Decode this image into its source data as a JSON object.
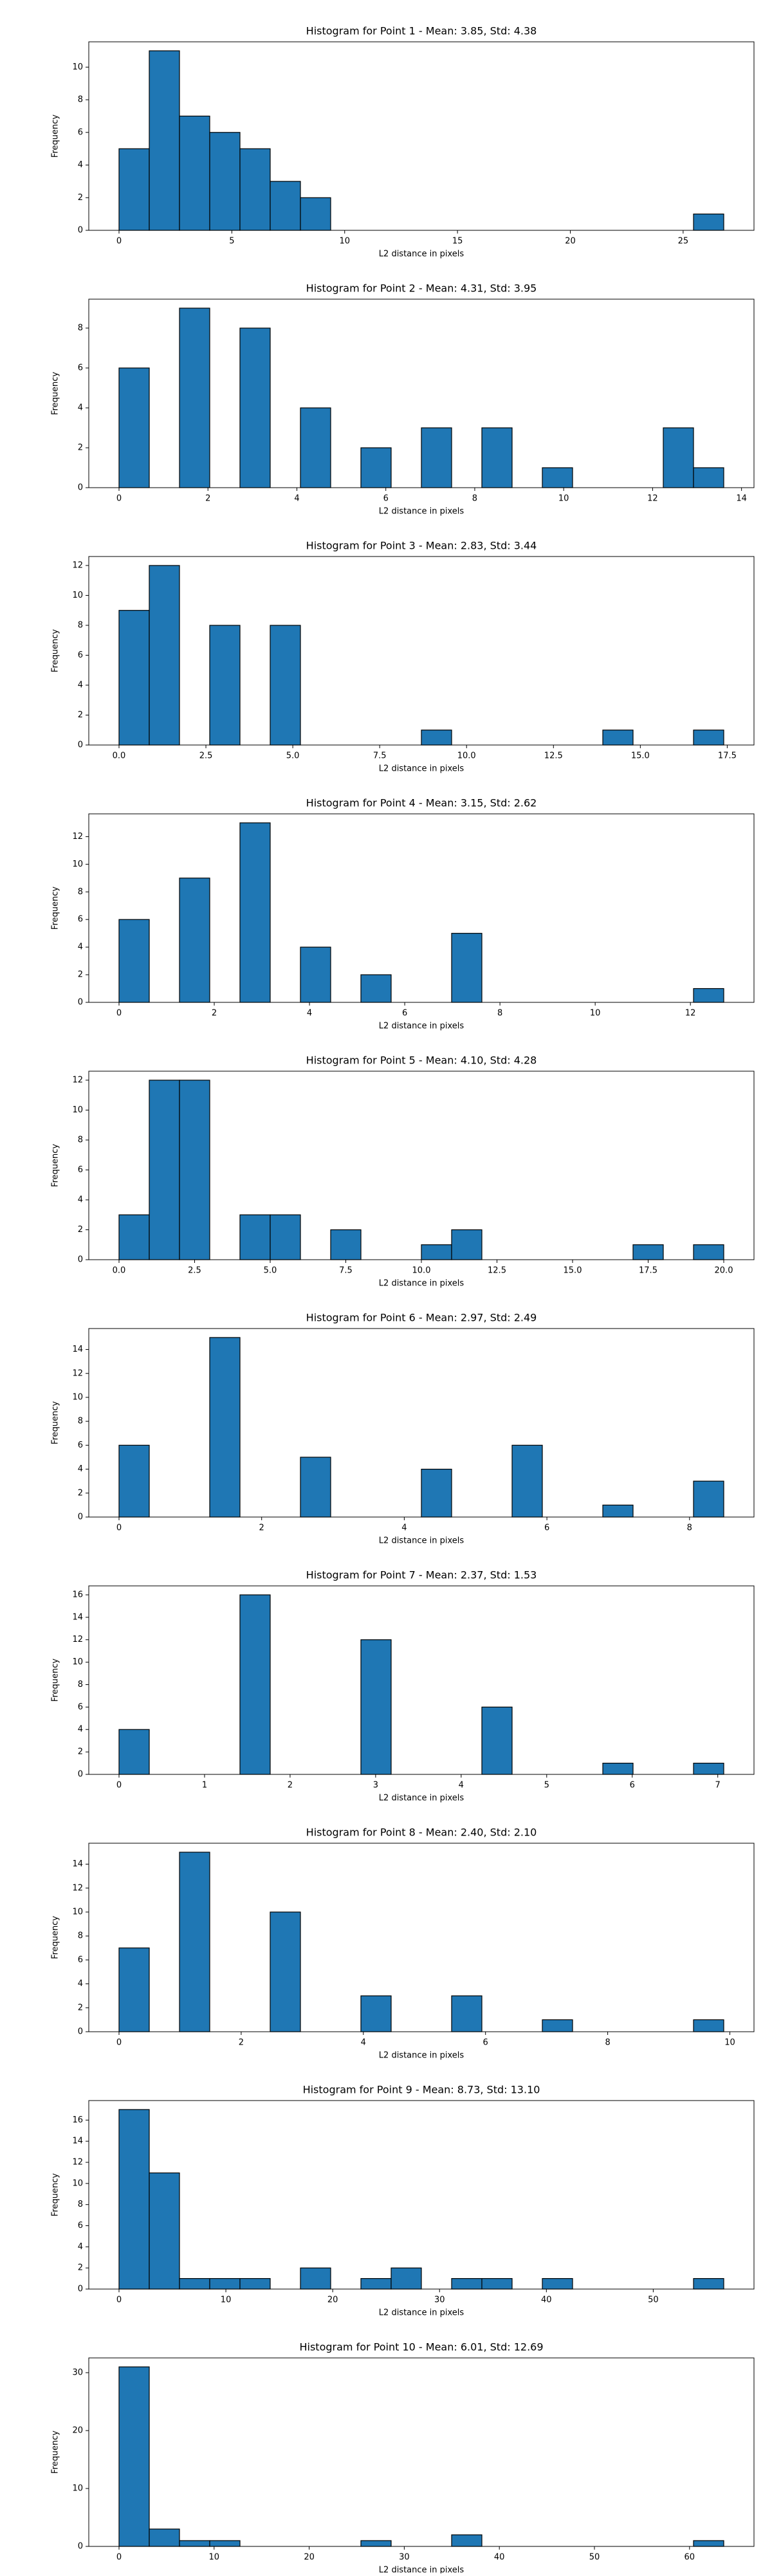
{
  "chart_data": [
    {
      "type": "histogram",
      "title": "Histogram for Point 1 - Mean: 3.85, Std: 4.38",
      "xlabel": "L2 distance in pixels",
      "ylabel": "Frequency",
      "color": "#1f77b4",
      "edgecolor": "#000000",
      "bins": [
        0,
        1.34,
        2.68,
        4.02,
        5.36,
        6.7,
        8.04,
        9.38,
        10.72,
        12.06,
        13.4,
        14.74,
        16.08,
        17.42,
        18.76,
        20.1,
        21.44,
        22.78,
        24.12,
        25.46,
        26.8
      ],
      "counts": [
        5,
        11,
        7,
        6,
        5,
        3,
        2,
        0,
        0,
        0,
        0,
        0,
        0,
        0,
        0,
        0,
        0,
        0,
        0,
        1
      ],
      "xlim": [
        -1.34,
        28.14
      ],
      "xticks": [
        0,
        5,
        10,
        15,
        20,
        25
      ],
      "ylim": [
        0,
        11.55
      ],
      "yticks": [
        0,
        2,
        4,
        6,
        8,
        10
      ]
    },
    {
      "type": "histogram",
      "title": "Histogram for Point 2 - Mean: 4.31, Std: 3.95",
      "xlabel": "L2 distance in pixels",
      "ylabel": "Frequency",
      "color": "#1f77b4",
      "edgecolor": "#000000",
      "bins": [
        0,
        0.68,
        1.36,
        2.04,
        2.72,
        3.4,
        4.08,
        4.76,
        5.44,
        6.12,
        6.8,
        7.48,
        8.16,
        8.84,
        9.52,
        10.2,
        10.88,
        11.56,
        12.24,
        12.92,
        13.6
      ],
      "counts": [
        6,
        0,
        9,
        0,
        8,
        0,
        4,
        0,
        2,
        0,
        3,
        0,
        3,
        0,
        1,
        0,
        0,
        0,
        3,
        1
      ],
      "xlim": [
        -0.68,
        14.28
      ],
      "xticks": [
        0,
        2,
        4,
        6,
        8,
        10,
        12,
        14
      ],
      "ylim": [
        0,
        9.45
      ],
      "yticks": [
        0,
        2,
        4,
        6,
        8
      ]
    },
    {
      "type": "histogram",
      "title": "Histogram for Point 3 - Mean: 2.83, Std: 3.44",
      "xlabel": "L2 distance in pixels",
      "ylabel": "Frequency",
      "color": "#1f77b4",
      "edgecolor": "#000000",
      "bins": [
        0,
        0.87,
        1.74,
        2.61,
        3.48,
        4.35,
        5.22,
        6.09,
        6.96,
        7.83,
        8.7,
        9.57,
        10.44,
        11.31,
        12.18,
        13.05,
        13.92,
        14.79,
        15.66,
        16.53,
        17.4
      ],
      "counts": [
        9,
        12,
        0,
        8,
        0,
        8,
        0,
        0,
        0,
        0,
        1,
        0,
        0,
        0,
        0,
        0,
        1,
        0,
        0,
        1
      ],
      "xlim": [
        -0.87,
        18.27
      ],
      "xticks": [
        {
          "value": 0,
          "label": "0.0"
        },
        2.5,
        {
          "value": 5,
          "label": "5.0"
        },
        7.5,
        {
          "value": 10,
          "label": "10.0"
        },
        12.5,
        {
          "value": 15,
          "label": "15.0"
        },
        17.5
      ],
      "ylim": [
        0,
        12.6
      ],
      "yticks": [
        0,
        2,
        4,
        6,
        8,
        10,
        12
      ]
    },
    {
      "type": "histogram",
      "title": "Histogram for Point 4 - Mean: 3.15, Std: 2.62",
      "xlabel": "L2 distance in pixels",
      "ylabel": "Frequency",
      "color": "#1f77b4",
      "edgecolor": "#000000",
      "bins": [
        0,
        0.635,
        1.27,
        1.905,
        2.54,
        3.175,
        3.81,
        4.445,
        5.08,
        5.715,
        6.35,
        6.985,
        7.62,
        8.255,
        8.89,
        9.525,
        10.16,
        10.795,
        11.43,
        12.065,
        12.7
      ],
      "counts": [
        6,
        0,
        9,
        0,
        13,
        0,
        4,
        0,
        2,
        0,
        0,
        5,
        0,
        0,
        0,
        0,
        0,
        0,
        0,
        1
      ],
      "xlim": [
        -0.635,
        13.335
      ],
      "xticks": [
        0,
        2,
        4,
        6,
        8,
        10,
        12
      ],
      "ylim": [
        0,
        13.65
      ],
      "yticks": [
        0,
        2,
        4,
        6,
        8,
        10,
        12
      ]
    },
    {
      "type": "histogram",
      "title": "Histogram for Point 5 - Mean: 4.10, Std: 4.28",
      "xlabel": "L2 distance in pixels",
      "ylabel": "Frequency",
      "color": "#1f77b4",
      "edgecolor": "#000000",
      "bins": [
        0,
        1,
        2,
        3,
        4,
        5,
        6,
        7,
        8,
        9,
        10,
        11,
        12,
        13,
        14,
        15,
        16,
        17,
        18,
        19,
        20
      ],
      "counts": [
        3,
        12,
        12,
        0,
        3,
        3,
        0,
        2,
        0,
        0,
        1,
        2,
        0,
        0,
        0,
        0,
        0,
        1,
        0,
        1
      ],
      "xlim": [
        -1,
        21
      ],
      "xticks": [
        {
          "value": 0,
          "label": "0.0"
        },
        2.5,
        {
          "value": 5,
          "label": "5.0"
        },
        7.5,
        {
          "value": 10,
          "label": "10.0"
        },
        12.5,
        {
          "value": 15,
          "label": "15.0"
        },
        17.5,
        {
          "value": 20,
          "label": "20.0"
        }
      ],
      "ylim": [
        0,
        12.6
      ],
      "yticks": [
        0,
        2,
        4,
        6,
        8,
        10,
        12
      ]
    },
    {
      "type": "histogram",
      "title": "Histogram for Point 6 - Mean: 2.97, Std: 2.49",
      "xlabel": "L2 distance in pixels",
      "ylabel": "Frequency",
      "color": "#1f77b4",
      "edgecolor": "#000000",
      "bins": [
        0,
        0.424,
        0.848,
        1.272,
        1.696,
        2.12,
        2.544,
        2.968,
        3.392,
        3.816,
        4.24,
        4.664,
        5.088,
        5.512,
        5.936,
        6.36,
        6.784,
        7.208,
        7.632,
        8.056,
        8.48
      ],
      "counts": [
        6,
        0,
        0,
        15,
        0,
        0,
        5,
        0,
        0,
        0,
        4,
        0,
        0,
        6,
        0,
        0,
        1,
        0,
        0,
        3
      ],
      "xlim": [
        -0.424,
        8.904
      ],
      "xticks": [
        0,
        2,
        4,
        6,
        8
      ],
      "ylim": [
        0,
        15.75
      ],
      "yticks": [
        0,
        2,
        4,
        6,
        8,
        10,
        12,
        14
      ]
    },
    {
      "type": "histogram",
      "title": "Histogram for Point 7 - Mean: 2.37, Std: 1.53",
      "xlabel": "L2 distance in pixels",
      "ylabel": "Frequency",
      "color": "#1f77b4",
      "edgecolor": "#000000",
      "bins": [
        0,
        0.3535,
        0.707,
        1.0605,
        1.414,
        1.7675,
        2.121,
        2.4745,
        2.828,
        3.1815,
        3.535,
        3.8885,
        4.242,
        4.5955,
        4.949,
        5.3025,
        5.656,
        6.0095,
        6.363,
        6.7165,
        7.07
      ],
      "counts": [
        4,
        0,
        0,
        0,
        16,
        0,
        0,
        0,
        12,
        0,
        0,
        0,
        6,
        0,
        0,
        0,
        1,
        0,
        0,
        1
      ],
      "xlim": [
        -0.3535,
        7.4235
      ],
      "xticks": [
        0,
        1,
        2,
        3,
        4,
        5,
        6,
        7
      ],
      "ylim": [
        0,
        16.8
      ],
      "yticks": [
        0,
        2,
        4,
        6,
        8,
        10,
        12,
        14,
        16
      ]
    },
    {
      "type": "histogram",
      "title": "Histogram for Point 8 - Mean: 2.40, Std: 2.10",
      "xlabel": "L2 distance in pixels",
      "ylabel": "Frequency",
      "color": "#1f77b4",
      "edgecolor": "#000000",
      "bins": [
        0,
        0.495,
        0.99,
        1.485,
        1.98,
        2.475,
        2.97,
        3.465,
        3.96,
        4.455,
        4.95,
        5.445,
        5.94,
        6.435,
        6.93,
        7.425,
        7.92,
        8.415,
        8.91,
        9.405,
        9.9
      ],
      "counts": [
        7,
        0,
        15,
        0,
        0,
        10,
        0,
        0,
        3,
        0,
        0,
        3,
        0,
        0,
        1,
        0,
        0,
        0,
        0,
        1
      ],
      "xlim": [
        -0.495,
        10.395
      ],
      "xticks": [
        0,
        2,
        4,
        6,
        8,
        10
      ],
      "ylim": [
        0,
        15.75
      ],
      "yticks": [
        0,
        2,
        4,
        6,
        8,
        10,
        12,
        14
      ]
    },
    {
      "type": "histogram",
      "title": "Histogram for Point 9 - Mean: 8.73, Std: 13.10",
      "xlabel": "L2 distance in pixels",
      "ylabel": "Frequency",
      "color": "#1f77b4",
      "edgecolor": "#000000",
      "bins": [
        0,
        2.83,
        5.66,
        8.49,
        11.32,
        14.15,
        16.98,
        19.81,
        22.64,
        25.47,
        28.3,
        31.13,
        33.96,
        36.79,
        39.62,
        42.45,
        45.28,
        48.11,
        50.94,
        53.77,
        56.6
      ],
      "counts": [
        17,
        11,
        1,
        1,
        1,
        0,
        2,
        0,
        1,
        2,
        0,
        1,
        1,
        0,
        1,
        0,
        0,
        0,
        0,
        1
      ],
      "xlim": [
        -2.83,
        59.43
      ],
      "xticks": [
        0,
        10,
        20,
        30,
        40,
        50
      ],
      "ylim": [
        0,
        17.85
      ],
      "yticks": [
        0,
        2,
        4,
        6,
        8,
        10,
        12,
        14,
        16
      ]
    },
    {
      "type": "histogram",
      "title": "Histogram for Point 10 - Mean: 6.01, Std: 12.69",
      "xlabel": "L2 distance in pixels",
      "ylabel": "Frequency",
      "color": "#1f77b4",
      "edgecolor": "#000000",
      "bins": [
        0,
        3.18,
        6.36,
        9.54,
        12.72,
        15.9,
        19.08,
        22.26,
        25.44,
        28.62,
        31.8,
        34.98,
        38.16,
        41.34,
        44.52,
        47.7,
        50.88,
        54.06,
        57.24,
        60.42,
        63.6
      ],
      "counts": [
        31,
        3,
        1,
        1,
        0,
        0,
        0,
        0,
        1,
        0,
        0,
        2,
        0,
        0,
        0,
        0,
        0,
        0,
        0,
        1
      ],
      "xlim": [
        -3.18,
        66.78
      ],
      "xticks": [
        0,
        10,
        20,
        30,
        40,
        50,
        60
      ],
      "ylim": [
        0,
        32.55
      ],
      "yticks": [
        0,
        10,
        20,
        30
      ]
    }
  ]
}
